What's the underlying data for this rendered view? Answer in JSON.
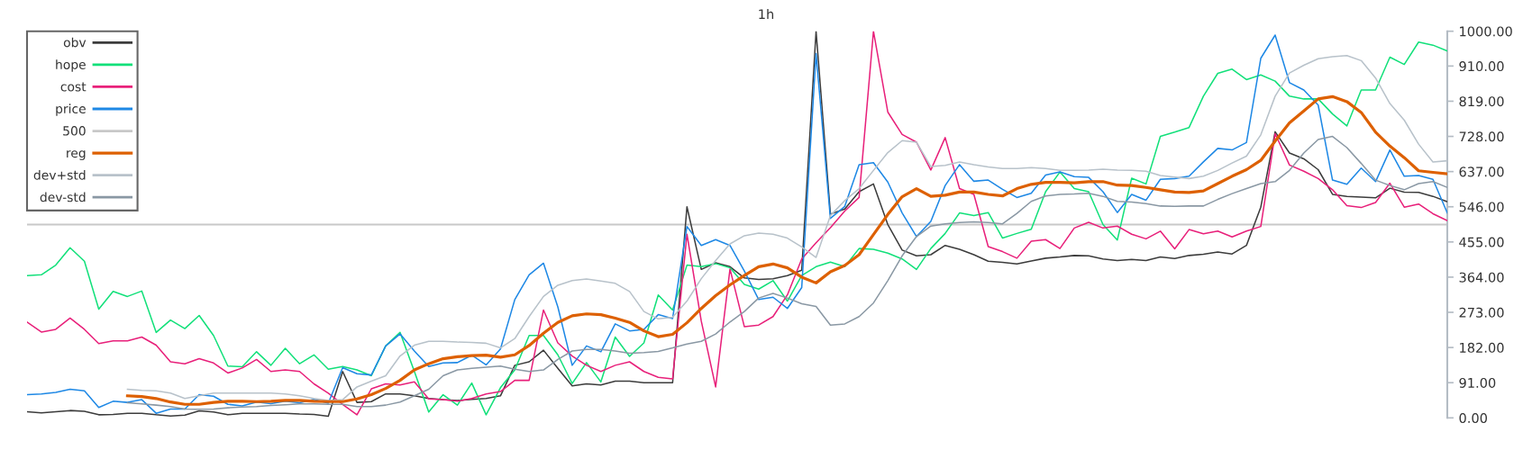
{
  "chart_data": {
    "type": "line",
    "title": "1h",
    "categories": [
      null,
      null,
      null,
      null,
      null,
      null,
      null,
      null,
      null,
      null,
      null,
      null,
      null,
      null,
      null,
      null,
      null,
      null,
      null,
      null,
      null,
      null,
      null,
      null,
      null,
      null,
      null,
      null,
      null,
      null,
      null,
      null,
      null,
      null,
      null,
      null,
      null,
      null,
      null,
      null,
      null,
      null,
      null,
      null,
      null,
      null,
      null,
      null,
      null,
      null,
      null,
      null,
      null,
      null,
      null,
      null,
      null,
      null,
      null,
      null,
      null,
      null,
      null,
      null,
      null,
      null,
      null,
      null,
      null,
      null,
      null,
      null,
      null,
      null,
      null,
      null,
      null,
      null,
      null,
      null,
      null,
      null,
      null,
      null,
      null,
      null,
      null,
      null,
      null,
      null,
      null,
      null,
      null,
      null,
      null,
      null,
      null,
      null,
      null,
      null
    ],
    "series": [
      {
        "name": "obv",
        "color": "#3c3c3c",
        "values": [
          16,
          13,
          16,
          19,
          17,
          8,
          9,
          12,
          12,
          8,
          5,
          7,
          18,
          15,
          8,
          12,
          12,
          12,
          12,
          10,
          9,
          4,
          120,
          40,
          42,
          62,
          62,
          57,
          50,
          47,
          45,
          48,
          50,
          57,
          136,
          145,
          175,
          128,
          83,
          88,
          85,
          95,
          95,
          91,
          91,
          91,
          546,
          384,
          401,
          391,
          362,
          358,
          360,
          368,
          382,
          1000,
          527,
          540,
          585,
          605,
          500,
          434,
          419,
          422,
          446,
          436,
          422,
          405,
          402,
          398,
          406,
          413,
          416,
          420,
          419,
          411,
          407,
          410,
          407,
          416,
          412,
          420,
          423,
          429,
          424,
          446,
          545,
          740,
          685,
          670,
          642,
          578,
          573,
          571,
          569,
          594,
          584,
          583,
          573,
          559
        ]
      },
      {
        "name": "hope",
        "color": "#12e07a",
        "values": [
          368,
          370,
          395,
          440,
          405,
          281,
          327,
          314,
          328,
          221,
          253,
          231,
          265,
          213,
          134,
          132,
          171,
          136,
          180,
          140,
          163,
          126,
          133,
          124,
          109,
          186,
          221,
          120,
          15,
          60,
          33,
          90,
          8,
          78,
          124,
          213,
          213,
          163,
          89,
          143,
          93,
          209,
          159,
          194,
          318,
          279,
          395,
          391,
          399,
          388,
          345,
          333,
          355,
          302,
          368,
          391,
          403,
          391,
          438,
          436,
          426,
          411,
          384,
          438,
          477,
          530,
          523,
          531,
          465,
          477,
          488,
          585,
          636,
          593,
          585,
          500,
          460,
          620,
          605,
          728,
          739,
          751,
          832,
          891,
          902,
          875,
          887,
          871,
          832,
          825,
          825,
          786,
          755,
          848,
          848,
          933,
          914,
          972,
          964,
          949
        ]
      },
      {
        "name": "cost",
        "color": "#e8207a",
        "values": [
          248,
          222,
          229,
          258,
          229,
          192,
          199,
          199,
          209,
          188,
          145,
          140,
          153,
          142,
          116,
          129,
          151,
          120,
          124,
          120,
          88,
          64,
          35,
          8,
          75,
          88,
          85,
          93,
          49,
          47,
          43,
          50,
          62,
          68,
          97,
          97,
          279,
          194,
          160,
          136,
          120,
          136,
          145,
          120,
          105,
          101,
          475,
          250,
          80,
          385,
          236,
          240,
          262,
          318,
          411,
          453,
          492,
          535,
          570,
          1000,
          791,
          733,
          713,
          641,
          725,
          593,
          578,
          443,
          430,
          413,
          457,
          461,
          438,
          491,
          506,
          491,
          496,
          475,
          463,
          483,
          437,
          487,
          476,
          483,
          468,
          483,
          495,
          735,
          654,
          638,
          619,
          590,
          549,
          544,
          557,
          607,
          545,
          553,
          528,
          510
        ]
      },
      {
        "name": "price",
        "color": "#1e88e5",
        "values": [
          60,
          62,
          66,
          74,
          70,
          27,
          43,
          40,
          47,
          12,
          23,
          23,
          60,
          56,
          35,
          31,
          41,
          37,
          43,
          39,
          48,
          38,
          130,
          114,
          111,
          186,
          217,
          173,
          133,
          142,
          143,
          162,
          137,
          178,
          306,
          370,
          400,
          287,
          136,
          186,
          171,
          243,
          225,
          229,
          267,
          257,
          495,
          446,
          461,
          446,
          380,
          306,
          312,
          283,
          337,
          942,
          516,
          547,
          655,
          660,
          610,
          530,
          469,
          508,
          601,
          655,
          612,
          615,
          591,
          570,
          581,
          628,
          636,
          624,
          622,
          585,
          531,
          578,
          563,
          617,
          619,
          625,
          662,
          697,
          693,
          712,
          930,
          990,
          867,
          848,
          809,
          615,
          604,
          646,
          611,
          693,
          625,
          627,
          617,
          530
        ]
      },
      {
        "name": "reg",
        "color": "#dd6000",
        "values": [
          null,
          null,
          null,
          null,
          null,
          null,
          null,
          57,
          55,
          50,
          41,
          35,
          35,
          40,
          43,
          43,
          42,
          43,
          45,
          45,
          43,
          42,
          42,
          49,
          60,
          76,
          97,
          124,
          140,
          153,
          158,
          161,
          162,
          157,
          163,
          187,
          219,
          247,
          264,
          269,
          267,
          258,
          247,
          225,
          210,
          216,
          246,
          283,
          316,
          344,
          368,
          391,
          398,
          388,
          364,
          349,
          378,
          394,
          422,
          474,
          526,
          572,
          593,
          573,
          576,
          584,
          584,
          578,
          574,
          593,
          604,
          609,
          609,
          608,
          611,
          611,
          602,
          601,
          596,
          590,
          584,
          583,
          587,
          606,
          625,
          642,
          666,
          716,
          763,
          794,
          825,
          831,
          818,
          790,
          739,
          703,
          673,
          639,
          635,
          631
        ]
      },
      {
        "name": "dev+std",
        "color": "#b8c2ca",
        "values": [
          null,
          null,
          null,
          null,
          null,
          null,
          null,
          74,
          71,
          70,
          64,
          50,
          57,
          64,
          64,
          64,
          64,
          64,
          62,
          57,
          50,
          45,
          47,
          80,
          95,
          109,
          160,
          188,
          198,
          198,
          196,
          195,
          193,
          181,
          205,
          262,
          314,
          343,
          355,
          359,
          354,
          348,
          327,
          275,
          256,
          260,
          302,
          360,
          407,
          450,
          471,
          478,
          475,
          465,
          442,
          415,
          523,
          562,
          593,
          640,
          686,
          717,
          713,
          650,
          653,
          662,
          655,
          649,
          645,
          645,
          647,
          645,
          640,
          640,
          641,
          643,
          641,
          640,
          638,
          627,
          623,
          619,
          625,
          640,
          659,
          677,
          732,
          832,
          892,
          912,
          929,
          934,
          937,
          924,
          879,
          813,
          770,
          708,
          662,
          665
        ]
      },
      {
        "name": "dev-std",
        "color": "#8a98a4",
        "values": [
          null,
          null,
          null,
          null,
          null,
          null,
          null,
          39,
          36,
          33,
          29,
          23,
          22,
          23,
          26,
          28,
          29,
          32,
          34,
          36,
          36,
          35,
          35,
          29,
          29,
          33,
          41,
          57,
          74,
          109,
          124,
          128,
          131,
          134,
          126,
          120,
          124,
          151,
          173,
          177,
          177,
          173,
          167,
          169,
          172,
          181,
          191,
          198,
          217,
          248,
          275,
          310,
          322,
          310,
          295,
          288,
          240,
          243,
          262,
          297,
          355,
          419,
          469,
          496,
          502,
          505,
          507,
          505,
          502,
          529,
          560,
          574,
          578,
          579,
          581,
          573,
          560,
          558,
          554,
          548,
          547,
          548,
          548,
          565,
          580,
          593,
          606,
          611,
          640,
          685,
          720,
          728,
          699,
          658,
          615,
          601,
          590,
          606,
          611,
          596
        ]
      }
    ],
    "ref_lines": [
      {
        "axis": "y",
        "value": 500,
        "label": "500",
        "color": "#c8c8c8"
      }
    ],
    "ylim": [
      0,
      1000
    ],
    "yticks": [
      {
        "value": 0,
        "label": "0.00"
      },
      {
        "value": 91,
        "label": "91.00"
      },
      {
        "value": 182,
        "label": "182.00"
      },
      {
        "value": 273,
        "label": "273.00"
      },
      {
        "value": 364,
        "label": "364.00"
      },
      {
        "value": 455,
        "label": "455.00"
      },
      {
        "value": 546,
        "label": "546.00"
      },
      {
        "value": 637,
        "label": "637.00"
      },
      {
        "value": 728,
        "label": "728.00"
      },
      {
        "value": 819,
        "label": "819.00"
      },
      {
        "value": 910,
        "label": "910.00"
      },
      {
        "value": 1000,
        "label": "1000.00"
      }
    ],
    "tick_labels": "y",
    "legend": "top left"
  }
}
